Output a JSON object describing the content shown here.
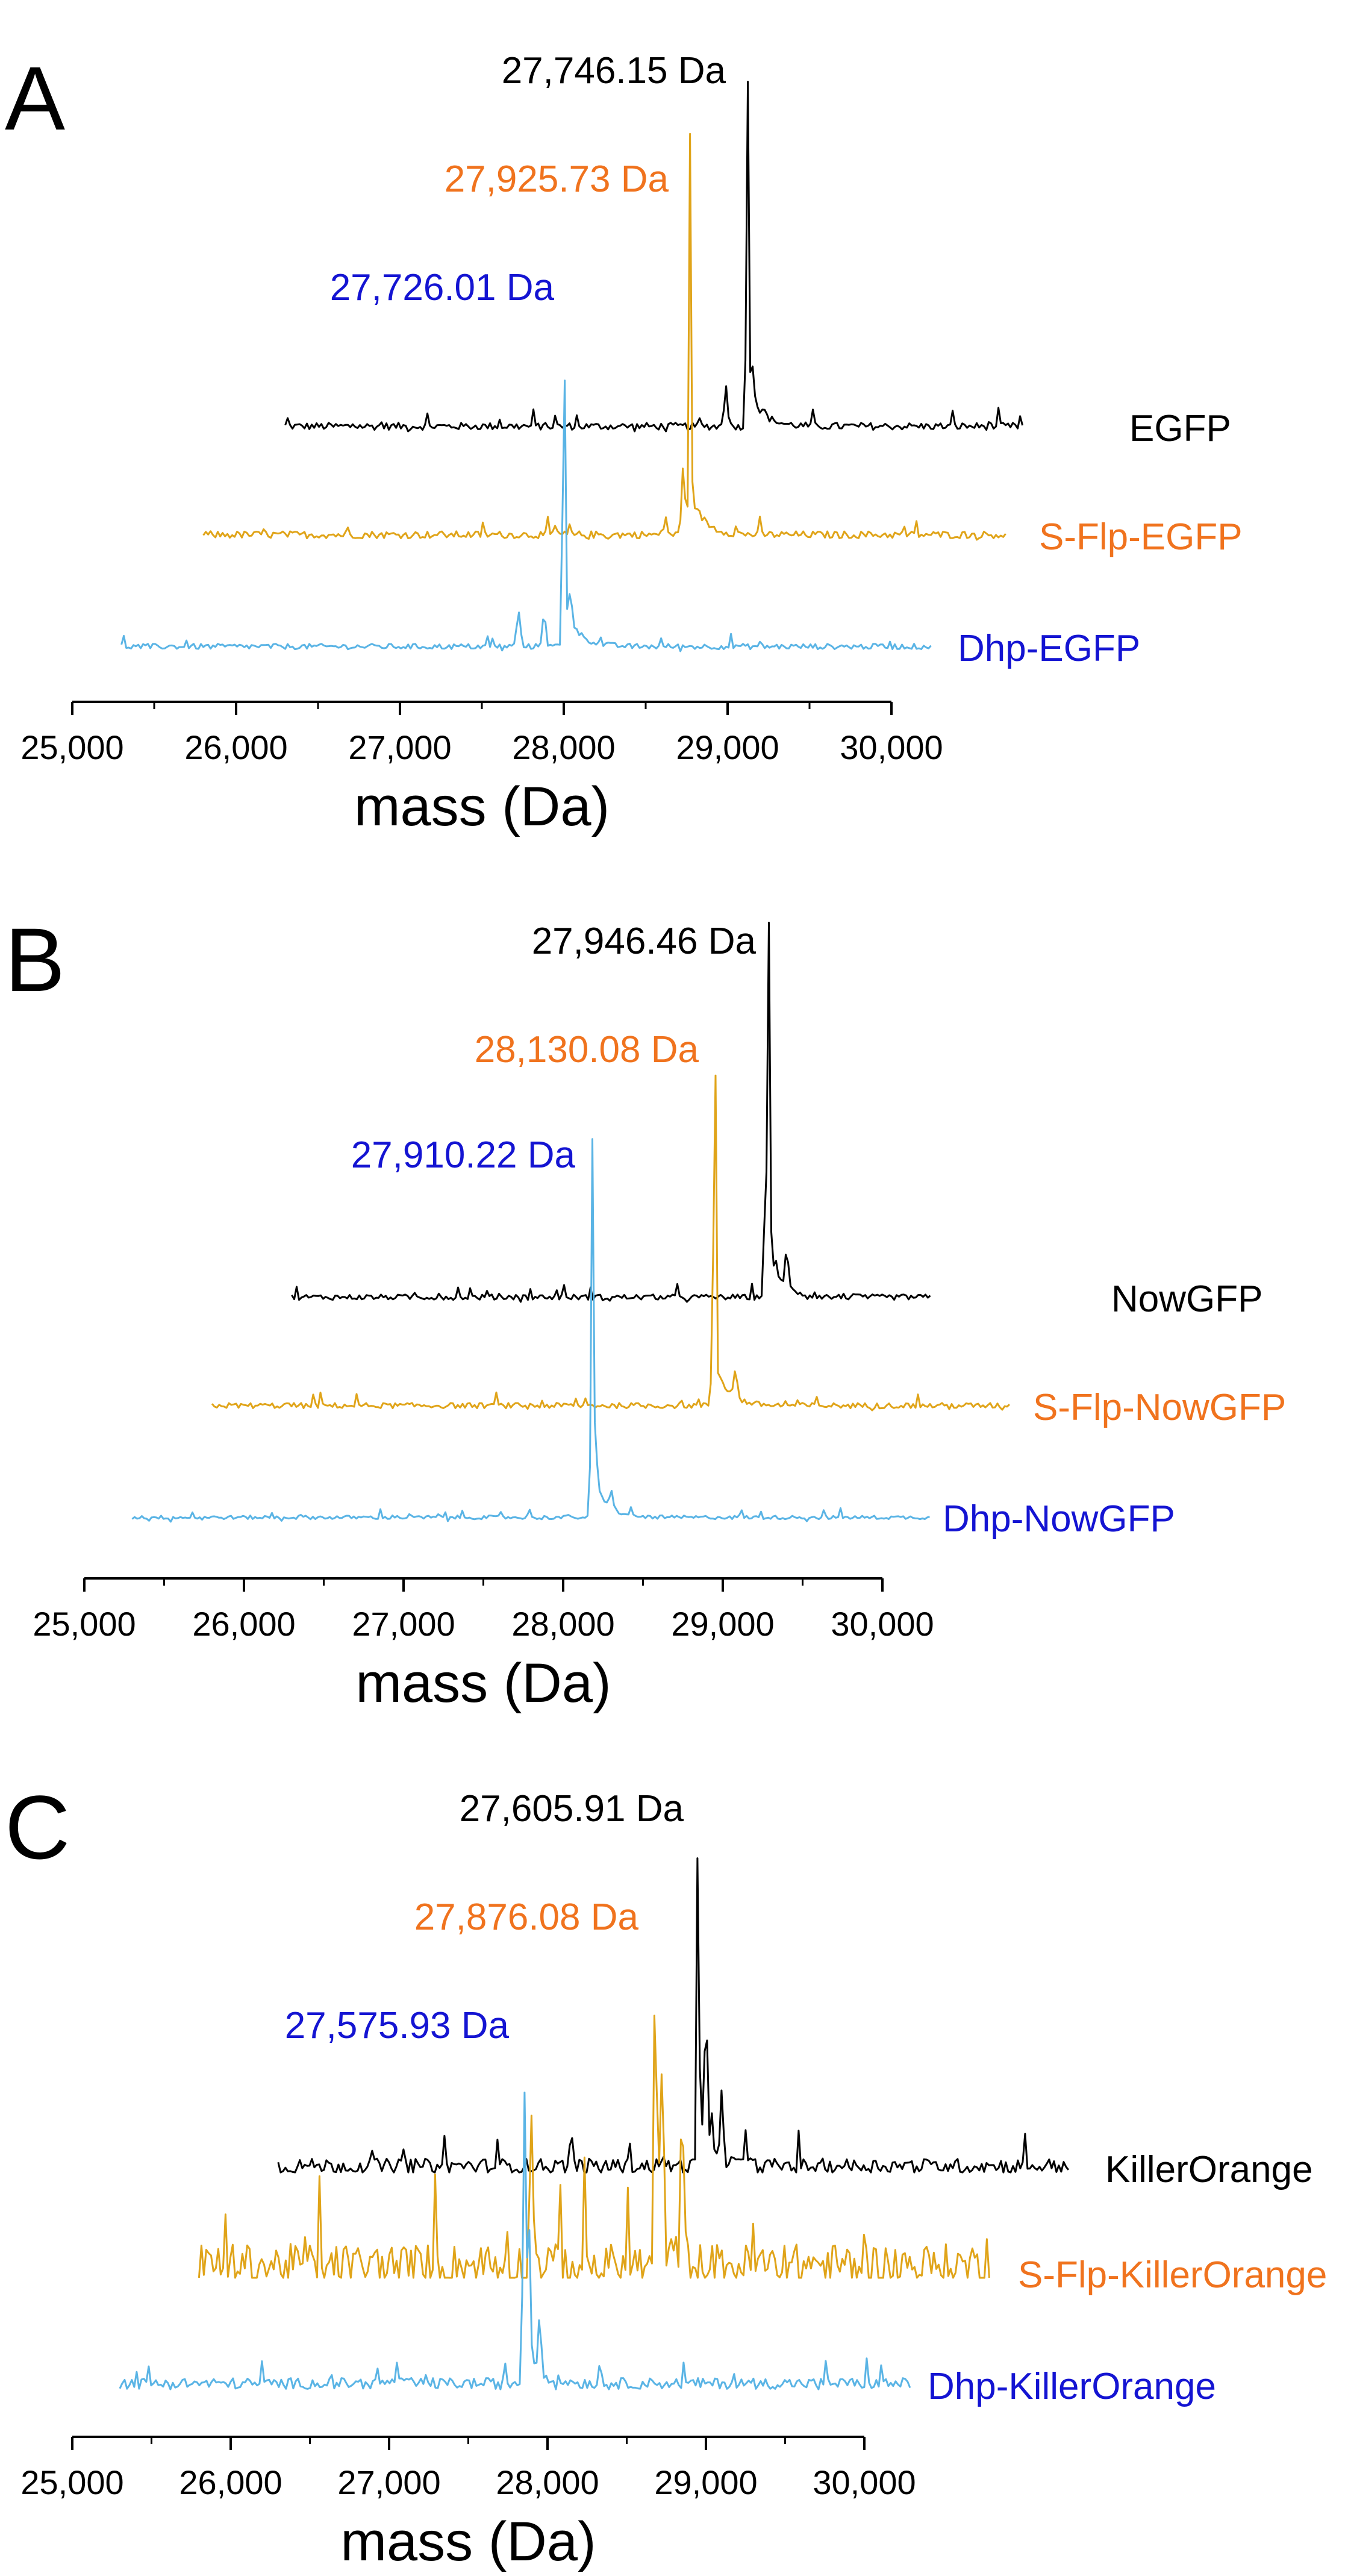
{
  "colors": {
    "black": "#000000",
    "orange_trace": "#E0A419",
    "orange_text": "#F0731E",
    "blue_trace": "#5AB4E5",
    "blue_text": "#1414D2"
  },
  "chart_data": [
    {
      "type": "line",
      "panel": "A",
      "xlabel": "mass (Da)",
      "xlim": [
        25000,
        30000
      ],
      "xticks": [
        "25,000",
        "26,000",
        "27,000",
        "28,000",
        "29,000",
        "30,000"
      ],
      "series": [
        {
          "name": "EGFP",
          "peak_label": "27,746.15 Da",
          "trace_color": "black",
          "label_color": "black",
          "peak_x": 29120,
          "peak_height": 1.0,
          "x_start": 26300,
          "x_end": 30800,
          "noise": 0.02,
          "secondary": [
            [
              28990,
              0.12
            ],
            [
              29150,
              0.1
            ]
          ]
        },
        {
          "name": "S-Flp-EGFP",
          "peak_label": "27,925.73 Da",
          "trace_color": "orange_trace",
          "label_color": "orange_text",
          "peak_x": 28770,
          "peak_height": 1.0,
          "x_start": 25800,
          "x_end": 30700,
          "noise": 0.02,
          "secondary": [
            [
              28730,
              0.2
            ],
            [
              28620,
              0.05
            ],
            [
              27950,
              0.02
            ]
          ]
        },
        {
          "name": "Dhp-EGFP",
          "peak_label": "27,726.01 Da",
          "trace_color": "blue_trace",
          "label_color": "blue_text",
          "peak_x": 28000,
          "peak_height": 1.0,
          "x_start": 25300,
          "x_end": 30250,
          "noise": 0.015,
          "secondary": [
            [
              27720,
              0.08
            ],
            [
              27880,
              0.1
            ],
            [
              28040,
              0.08
            ]
          ]
        }
      ]
    },
    {
      "type": "line",
      "panel": "B",
      "xlabel": "mass (Da)",
      "xlim": [
        25000,
        30000
      ],
      "xticks": [
        "25,000",
        "26,000",
        "27,000",
        "28,000",
        "29,000",
        "30,000"
      ],
      "series": [
        {
          "name": "NowGFP",
          "peak_label": "27,946.46 Da",
          "trace_color": "black",
          "label_color": "black",
          "peak_x": 29290,
          "peak_height": 1.0,
          "x_start": 26300,
          "x_end": 30300,
          "noise": 0.015,
          "secondary": [
            [
              29270,
              0.35
            ],
            [
              29400,
              0.1
            ]
          ]
        },
        {
          "name": "S-Flp-NowGFP",
          "peak_label": "28,130.08 Da",
          "trace_color": "orange_trace",
          "label_color": "orange_text",
          "peak_x": 28950,
          "peak_height": 1.0,
          "x_start": 25800,
          "x_end": 30800,
          "noise": 0.015,
          "secondary": [
            [
              28940,
              0.2
            ],
            [
              29080,
              0.08
            ]
          ]
        },
        {
          "name": "Dhp-NowGFP",
          "peak_label": "27,910.22 Da",
          "trace_color": "blue_trace",
          "label_color": "blue_text",
          "peak_x": 28180,
          "peak_height": 1.0,
          "x_start": 25300,
          "x_end": 30300,
          "noise": 0.01,
          "secondary": [
            [
              28200,
              0.15
            ],
            [
              28300,
              0.05
            ]
          ]
        }
      ]
    },
    {
      "type": "line",
      "panel": "C",
      "xlabel": "mass (Da)",
      "xlim": [
        25000,
        30000
      ],
      "xticks": [
        "25,000",
        "26,000",
        "27,000",
        "28,000",
        "29,000",
        "30,000"
      ],
      "series": [
        {
          "name": "KillerOrange",
          "peak_label": "27,605.91 Da",
          "trace_color": "black",
          "label_color": "black",
          "peak_x": 28950,
          "peak_height": 1.0,
          "x_start": 26300,
          "x_end": 31300,
          "noise": 0.04,
          "secondary": [
            [
              29000,
              0.35
            ],
            [
              29100,
              0.2
            ],
            [
              28150,
              0.08
            ],
            [
              29250,
              0.08
            ]
          ]
        },
        {
          "name": "S-Flp-KillerOrange",
          "peak_label": "27,876.08 Da",
          "trace_color": "orange_trace",
          "label_color": "orange_text",
          "peak_x": 28680,
          "peak_height": 1.0,
          "x_start": 25800,
          "x_end": 30800,
          "noise": 0.12,
          "secondary": [
            [
              28720,
              0.45
            ],
            [
              28850,
              0.4
            ],
            [
              27900,
              0.45
            ]
          ]
        },
        {
          "name": "Dhp-KillerOrange",
          "peak_label": "27,575.93 Da",
          "trace_color": "blue_trace",
          "label_color": "blue_text",
          "peak_x": 27850,
          "peak_height": 1.0,
          "x_start": 25300,
          "x_end": 30300,
          "noise": 0.03,
          "secondary": [
            [
              27880,
              0.4
            ],
            [
              27950,
              0.15
            ],
            [
              27050,
              0.05
            ]
          ]
        }
      ]
    }
  ]
}
